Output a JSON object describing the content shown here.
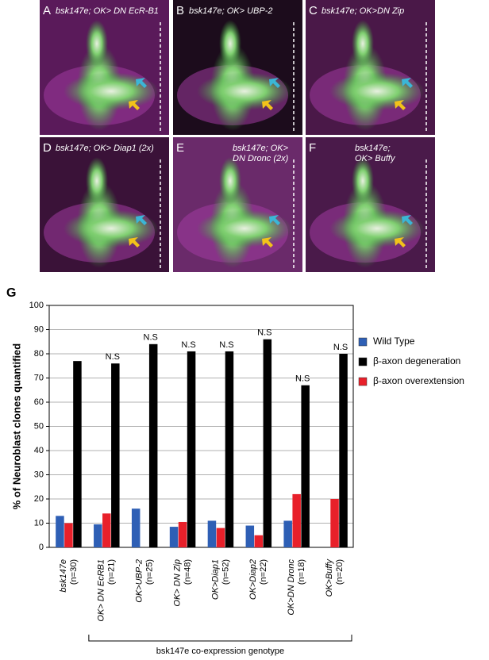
{
  "panels": [
    {
      "label": "A",
      "caption": [
        "bsk147e; OK> DN EcR-B1"
      ]
    },
    {
      "label": "B",
      "caption": [
        "bsk147e; OK> UBP-2"
      ]
    },
    {
      "label": "C",
      "caption": [
        "bsk147e; OK>DN Zip"
      ]
    },
    {
      "label": "D",
      "caption": [
        "bsk147e; OK> Diap1 (2x)"
      ]
    },
    {
      "label": "E",
      "caption": [
        "bsk147e; OK>",
        "DN Dronc (2x)"
      ]
    },
    {
      "label": "F",
      "caption": [
        "bsk147e;",
        "OK> Buffy"
      ]
    }
  ],
  "chart_data": {
    "type": "bar",
    "panel_label": "G",
    "y_label": "% of Neuroblast clones quantified",
    "x_label": "bsk147e co-expression genotype",
    "categories": [
      "bsk147e",
      "OK> DN EcRB1",
      "OK>UBP-2",
      "OK> DN Zip",
      "OK>Diap1",
      "OK>Diap2",
      "OK>DN Dronc",
      "OK>Buffy"
    ],
    "counts": [
      "(n=30)",
      "(n=21)",
      "(n=25)",
      "(n=48)",
      "(n=52)",
      "(n=22)",
      "(n=18)",
      "(n=20)"
    ],
    "significance": [
      null,
      "N.S",
      "N.S",
      "N.S",
      "N.S",
      "N.S",
      "N.S",
      "N.S"
    ],
    "series": [
      {
        "name": "Wild Type",
        "color": "#2e5fb5",
        "values": [
          13,
          9.5,
          16,
          8.5,
          11,
          9,
          11,
          null
        ]
      },
      {
        "name": "β-axon overextension",
        "color": "#e8202a",
        "values": [
          10,
          14,
          null,
          10.5,
          8,
          5,
          22,
          20
        ]
      },
      {
        "name": "β-axon degeneration",
        "color": "#000000",
        "values": [
          77,
          76,
          84,
          81,
          81,
          86,
          67,
          80
        ]
      }
    ],
    "legend_order": [
      0,
      2,
      1
    ],
    "ylim": [
      0,
      100
    ],
    "yticks": [
      0,
      10,
      20,
      30,
      40,
      50,
      60,
      70,
      80,
      90,
      100
    ],
    "grid": true
  }
}
